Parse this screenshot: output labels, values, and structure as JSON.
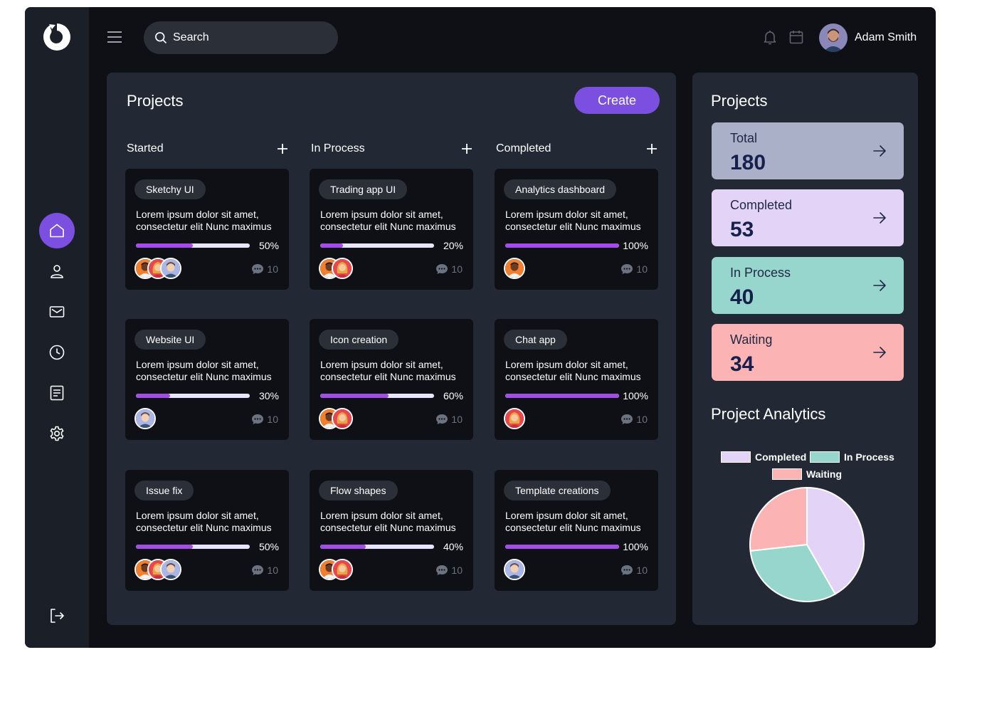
{
  "search": {
    "placeholder": "Search"
  },
  "user": {
    "name": "Adam Smith"
  },
  "projects": {
    "title": "Projects",
    "create_label": "Create",
    "columns": [
      {
        "title": "Started"
      },
      {
        "title": "In Process"
      },
      {
        "title": "Completed"
      }
    ],
    "cards": [
      {
        "tag": "Sketchy UI",
        "desc": "Lorem ipsum dolor sit amet, consectetur elit Nunc maximus",
        "progress": 50,
        "pct": "50%",
        "comments": "10",
        "avatars": [
          "dark-man",
          "red-woman",
          "blonde-man"
        ]
      },
      {
        "tag": "Trading app UI",
        "desc": "Lorem ipsum dolor sit amet, consectetur elit Nunc maximus",
        "progress": 20,
        "pct": "20%",
        "comments": "10",
        "avatars": [
          "dark-man",
          "red-woman"
        ]
      },
      {
        "tag": "Analytics dashboard",
        "desc": "Lorem ipsum dolor sit amet, consectetur elit Nunc maximus",
        "progress": 100,
        "pct": "100%",
        "comments": "10",
        "avatars": [
          "dark-man"
        ]
      },
      {
        "tag": "Website UI",
        "desc": "Lorem ipsum dolor sit amet, consectetur elit Nunc maximus",
        "progress": 30,
        "pct": "30%",
        "comments": "10",
        "avatars": [
          "blonde-man"
        ]
      },
      {
        "tag": "Icon creation",
        "desc": "Lorem ipsum dolor sit amet, consectetur elit Nunc maximus",
        "progress": 60,
        "pct": "60%",
        "comments": "10",
        "avatars": [
          "dark-man",
          "red-woman"
        ]
      },
      {
        "tag": "Chat app",
        "desc": "Lorem ipsum dolor sit amet, consectetur elit Nunc maximus",
        "progress": 100,
        "pct": "100%",
        "comments": "10",
        "avatars": [
          "red-woman"
        ]
      },
      {
        "tag": "Issue fix",
        "desc": "Lorem ipsum dolor sit amet, consectetur elit Nunc maximus",
        "progress": 50,
        "pct": "50%",
        "comments": "10",
        "avatars": [
          "dark-man",
          "red-woman",
          "blonde-man"
        ]
      },
      {
        "tag": "Flow shapes",
        "desc": "Lorem ipsum dolor sit amet, consectetur elit Nunc maximus",
        "progress": 40,
        "pct": "40%",
        "comments": "10",
        "avatars": [
          "dark-man",
          "red-woman"
        ]
      },
      {
        "tag": "Template creations",
        "desc": "Lorem ipsum dolor sit amet, consectetur elit Nunc maximus",
        "progress": 100,
        "pct": "100%",
        "comments": "10",
        "avatars": [
          "blonde-man"
        ]
      }
    ]
  },
  "summary": {
    "title": "Projects",
    "stats": [
      {
        "label": "Total",
        "value": "180",
        "color": "#a9b0c8"
      },
      {
        "label": "Completed",
        "value": "53",
        "color": "#e3d4f7"
      },
      {
        "label": "In Process",
        "value": "40",
        "color": "#96d6cc"
      },
      {
        "label": "Waiting",
        "value": "34",
        "color": "#fcb3b3"
      }
    ]
  },
  "analytics": {
    "title": "Project Analytics",
    "legend": [
      {
        "label": "Completed",
        "color": "#e3d4f7"
      },
      {
        "label": "In Process",
        "color": "#96d6cc"
      },
      {
        "label": "Waiting",
        "color": "#fcb3b3"
      }
    ]
  },
  "chart_data": {
    "type": "pie",
    "title": "Project Analytics",
    "categories": [
      "Completed",
      "In Process",
      "Waiting"
    ],
    "values": [
      53,
      40,
      34
    ],
    "colors": [
      "#e3d4f7",
      "#96d6cc",
      "#fcb3b3"
    ],
    "legend_position": "top"
  }
}
